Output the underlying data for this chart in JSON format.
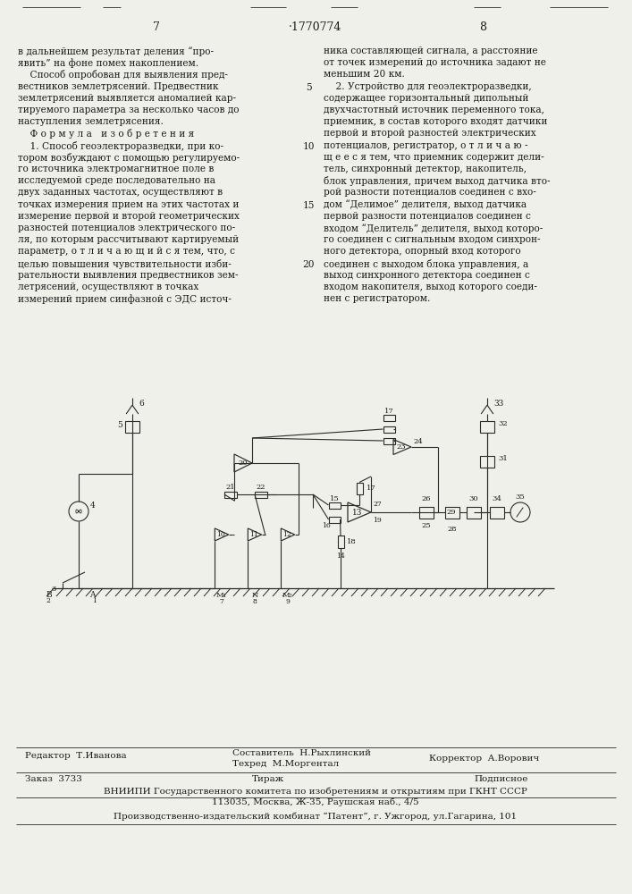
{
  "page_number_left": "7",
  "page_number_center": "·1770774",
  "page_number_right": "8",
  "bg": "#f0f0ea",
  "tc": "#1a1a1a",
  "left_col_lines": [
    "в дальнейшем результат деления “про-",
    "явить” на фоне помех накоплением.",
    "    Способ опробован для выявления пред-",
    "вестников землетрясений. Предвестник",
    "землетрясений выявляется аномалией кар-",
    "тируемого параметра за несколько часов до",
    "наступления землетрясения.",
    "    Ф о р м у л а   и з о б р е т е н и я",
    "    1. Способ геоэлектроразведки, при ко-",
    "тором возбуждают с помощью регулируемо-",
    "го источника электромагнитное поле в",
    "исследуемой среде последовательно на",
    "двух заданных частотах, осуществляют в",
    "точках измерения прием на этих частотах и",
    "измерение первой и второй геометрических",
    "разностей потенциалов электрического по-",
    "ля, по которым рассчитывают картируемый",
    "параметр, о т л и ч а ю щ и й с я тем, что, с",
    "целью повышения чувствительности изби-",
    "рательности выявления предвестников зем-",
    "летрясений, осуществляют в точках",
    "измерений прием синфазной с ЭДС источ-"
  ],
  "right_col_lines": [
    "ника составляющей сигнала, а расстояние",
    "от точек измерений до источника задают не",
    "меньшим 20 км.",
    "    2. Устройство для геоэлектроразведки,",
    "содержащее горизонтальный дипольный",
    "двухчастотный источник переменного тока,",
    "приемник, в состав которого входят датчики",
    "первой и второй разностей электрических",
    "потенциалов, регистратор, о т л и ч а ю -",
    "щ е е с я тем, что приемник содержит дели-",
    "тель, синхронный детектор, накопитель,",
    "блок управления, причем выход датчика вто-",
    "рой разности потенциалов соединен с вхо-",
    "дом “Делимое” делителя, выход датчика",
    "первой разности потенциалов соединен с",
    "входом “Делитель” делителя, выход которо-",
    "го соединен с сигнальным входом синхрон-",
    "ного детектора, опорный вход которого",
    "соединен с выходом блока управления, а",
    "выход синхронного детектора соединен с",
    "входом накопителя, выход которого соеди-",
    "нен с регистратором."
  ],
  "footer_editor": "Редактор  Т.Иванова",
  "footer_compiler": "Составитель  Н.Рыхлинский",
  "footer_techred": "Техред  М.Моргентал",
  "footer_corrector": "Корректор  А.Ворович",
  "footer_order": "Заказ  3733",
  "footer_tirazh": "Тираж",
  "footer_podpisnoe": "Подписное",
  "footer_vniiphi": "ВНИИПИ Государственного комитета по изобретениям и открытиям при ГКНТ СССР",
  "footer_address": "113035, Москва, Ж-35, Раушская наб., 4/5",
  "footer_factory": "Производственно-издательский комбинат “Патент”, г. Ужгород, ул.Гагарина, 101"
}
